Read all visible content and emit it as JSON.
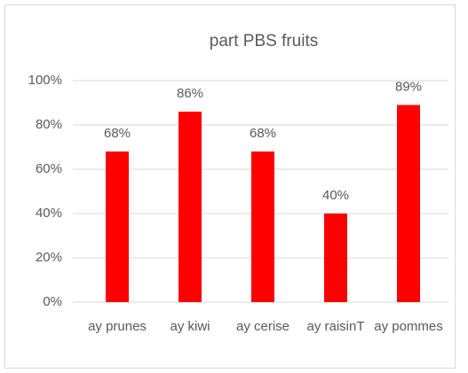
{
  "chart_data": {
    "type": "bar",
    "title": "part PBS fruits",
    "categories": [
      "ay prunes",
      "ay kiwi",
      "ay cerise",
      "ay raisinT",
      "ay pommes"
    ],
    "values": [
      68,
      86,
      68,
      40,
      89
    ],
    "value_labels": [
      "68%",
      "86%",
      "68%",
      "40%",
      "89%"
    ],
    "color": "#ff0000",
    "ylim": [
      0,
      100
    ],
    "yticks": [
      {
        "value": 0,
        "label": "0%"
      },
      {
        "value": 20,
        "label": "20%"
      },
      {
        "value": 40,
        "label": "40%"
      },
      {
        "value": 60,
        "label": "60%"
      },
      {
        "value": 80,
        "label": "80%"
      },
      {
        "value": 100,
        "label": "100%"
      }
    ],
    "grid": true
  }
}
